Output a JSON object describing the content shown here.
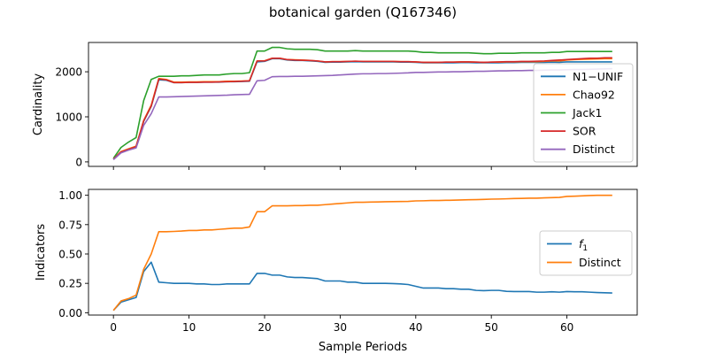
{
  "figure": {
    "title": "botanical garden (Q167346)",
    "xlabel": "Sample Periods"
  },
  "chart_data": [
    {
      "type": "line",
      "ylabel": "Cardinality",
      "xlim": [
        -3.3,
        69.3
      ],
      "ylim": [
        -100,
        2650
      ],
      "xticks": [
        0,
        10,
        20,
        30,
        40,
        50,
        60
      ],
      "yticks": [
        0,
        1000,
        2000
      ],
      "xticklabels_visible": false,
      "legend_position": "lower-right",
      "series": [
        {
          "name": "N1−UNIF",
          "color": "#1f77b4",
          "x": [
            0,
            1,
            2,
            3,
            4,
            5,
            6,
            7,
            8,
            9,
            10,
            11,
            12,
            13,
            14,
            15,
            16,
            17,
            18,
            19,
            20,
            21,
            22,
            23,
            24,
            25,
            26,
            27,
            28,
            29,
            30,
            31,
            32,
            33,
            34,
            35,
            36,
            37,
            38,
            39,
            40,
            41,
            42,
            43,
            44,
            45,
            46,
            47,
            48,
            49,
            50,
            51,
            52,
            53,
            54,
            55,
            56,
            57,
            58,
            59,
            60,
            61,
            62,
            63,
            64,
            65,
            66
          ],
          "y": [
            60,
            220,
            280,
            340,
            900,
            1230,
            1820,
            1810,
            1760,
            1760,
            1765,
            1765,
            1770,
            1770,
            1770,
            1780,
            1780,
            1785,
            1790,
            2220,
            2230,
            2290,
            2290,
            2260,
            2250,
            2250,
            2240,
            2230,
            2210,
            2215,
            2215,
            2220,
            2225,
            2220,
            2220,
            2220,
            2220,
            2220,
            2215,
            2215,
            2210,
            2200,
            2200,
            2200,
            2200,
            2200,
            2205,
            2205,
            2200,
            2200,
            2200,
            2200,
            2205,
            2205,
            2210,
            2210,
            2210,
            2210,
            2215,
            2210,
            2220,
            2220,
            2220,
            2220,
            2220,
            2220,
            2220
          ]
        },
        {
          "name": "Chao92",
          "color": "#ff7f0e",
          "x": [
            0,
            1,
            2,
            3,
            4,
            5,
            6,
            7,
            8,
            9,
            10,
            11,
            12,
            13,
            14,
            15,
            16,
            17,
            18,
            19,
            20,
            21,
            22,
            23,
            24,
            25,
            26,
            27,
            28,
            29,
            30,
            31,
            32,
            33,
            34,
            35,
            36,
            37,
            38,
            39,
            40,
            41,
            42,
            43,
            44,
            45,
            46,
            47,
            48,
            49,
            50,
            51,
            52,
            53,
            54,
            55,
            56,
            57,
            58,
            59,
            60,
            61,
            62,
            63,
            64,
            65,
            66
          ],
          "y": [
            60,
            230,
            290,
            350,
            920,
            1260,
            1850,
            1830,
            1770,
            1770,
            1775,
            1775,
            1780,
            1780,
            1780,
            1790,
            1790,
            1795,
            1800,
            2240,
            2245,
            2300,
            2300,
            2270,
            2265,
            2260,
            2250,
            2240,
            2220,
            2225,
            2225,
            2230,
            2235,
            2230,
            2230,
            2230,
            2230,
            2230,
            2225,
            2225,
            2220,
            2210,
            2210,
            2210,
            2215,
            2215,
            2220,
            2220,
            2215,
            2210,
            2215,
            2215,
            2220,
            2220,
            2225,
            2225,
            2225,
            2230,
            2240,
            2240,
            2260,
            2270,
            2275,
            2280,
            2285,
            2290,
            2290
          ]
        },
        {
          "name": "Jack1",
          "color": "#2ca02c",
          "x": [
            0,
            1,
            2,
            3,
            4,
            5,
            6,
            7,
            8,
            9,
            10,
            11,
            12,
            13,
            14,
            15,
            16,
            17,
            18,
            19,
            20,
            21,
            22,
            23,
            24,
            25,
            26,
            27,
            28,
            29,
            30,
            31,
            32,
            33,
            34,
            35,
            36,
            37,
            38,
            39,
            40,
            41,
            42,
            43,
            44,
            45,
            46,
            47,
            48,
            49,
            50,
            51,
            52,
            53,
            54,
            55,
            56,
            57,
            58,
            59,
            60,
            61,
            62,
            63,
            64,
            65,
            66
          ],
          "y": [
            80,
            320,
            440,
            540,
            1360,
            1830,
            1900,
            1900,
            1900,
            1910,
            1910,
            1920,
            1930,
            1930,
            1930,
            1950,
            1960,
            1960,
            1980,
            2460,
            2460,
            2540,
            2540,
            2510,
            2500,
            2500,
            2500,
            2490,
            2460,
            2460,
            2460,
            2460,
            2470,
            2460,
            2460,
            2460,
            2460,
            2460,
            2460,
            2460,
            2450,
            2430,
            2430,
            2420,
            2420,
            2420,
            2420,
            2420,
            2410,
            2400,
            2400,
            2410,
            2410,
            2410,
            2420,
            2420,
            2420,
            2420,
            2430,
            2430,
            2450,
            2450,
            2450,
            2450,
            2450,
            2450,
            2450
          ]
        },
        {
          "name": "SOR",
          "color": "#d62728",
          "x": [
            0,
            1,
            2,
            3,
            4,
            5,
            6,
            7,
            8,
            9,
            10,
            11,
            12,
            13,
            14,
            15,
            16,
            17,
            18,
            19,
            20,
            21,
            22,
            23,
            24,
            25,
            26,
            27,
            28,
            29,
            30,
            31,
            32,
            33,
            34,
            35,
            36,
            37,
            38,
            39,
            40,
            41,
            42,
            43,
            44,
            45,
            46,
            47,
            48,
            49,
            50,
            51,
            52,
            53,
            54,
            55,
            56,
            57,
            58,
            59,
            60,
            61,
            62,
            63,
            64,
            65,
            66
          ],
          "y": [
            60,
            220,
            280,
            340,
            910,
            1240,
            1840,
            1820,
            1760,
            1760,
            1765,
            1765,
            1770,
            1770,
            1775,
            1780,
            1785,
            1790,
            1800,
            2240,
            2240,
            2300,
            2300,
            2270,
            2260,
            2255,
            2250,
            2240,
            2220,
            2225,
            2225,
            2230,
            2235,
            2230,
            2230,
            2230,
            2230,
            2230,
            2225,
            2225,
            2220,
            2210,
            2210,
            2210,
            2215,
            2215,
            2220,
            2220,
            2215,
            2210,
            2215,
            2220,
            2225,
            2225,
            2230,
            2230,
            2235,
            2240,
            2250,
            2260,
            2270,
            2280,
            2290,
            2300,
            2300,
            2310,
            2310
          ]
        },
        {
          "name": "Distinct",
          "color": "#9467bd",
          "x": [
            0,
            1,
            2,
            3,
            4,
            5,
            6,
            7,
            8,
            9,
            10,
            11,
            12,
            13,
            14,
            15,
            16,
            17,
            18,
            19,
            20,
            21,
            22,
            23,
            24,
            25,
            26,
            27,
            28,
            29,
            30,
            31,
            32,
            33,
            34,
            35,
            36,
            37,
            38,
            39,
            40,
            41,
            42,
            43,
            44,
            45,
            46,
            47,
            48,
            49,
            50,
            51,
            52,
            53,
            54,
            55,
            56,
            57,
            58,
            59,
            60,
            61,
            62,
            63,
            64,
            65,
            66
          ],
          "y": [
            50,
            200,
            260,
            310,
            810,
            1070,
            1440,
            1440,
            1445,
            1450,
            1455,
            1460,
            1465,
            1470,
            1475,
            1480,
            1490,
            1495,
            1500,
            1800,
            1810,
            1890,
            1895,
            1895,
            1900,
            1900,
            1905,
            1910,
            1915,
            1920,
            1930,
            1940,
            1950,
            1955,
            1955,
            1960,
            1960,
            1965,
            1970,
            1975,
            1985,
            1985,
            1990,
            1995,
            1995,
            2000,
            2000,
            2005,
            2010,
            2010,
            2015,
            2020,
            2020,
            2025,
            2025,
            2030,
            2030,
            2035,
            2040,
            2040,
            2045,
            2050,
            2050,
            2055,
            2060,
            2065,
            2070
          ]
        }
      ]
    },
    {
      "type": "line",
      "ylabel": "Indicators",
      "xlim": [
        -3.3,
        69.3
      ],
      "ylim": [
        -0.02,
        1.05
      ],
      "xticks": [
        0,
        10,
        20,
        30,
        40,
        50,
        60
      ],
      "xticklabels": [
        "0",
        "10",
        "20",
        "30",
        "40",
        "50",
        "60"
      ],
      "yticks": [
        0.0,
        0.25,
        0.5,
        0.75,
        1.0
      ],
      "yticklabels": [
        "0.00",
        "0.25",
        "0.50",
        "0.75",
        "1.00"
      ],
      "legend_position": "center-right",
      "series": [
        {
          "name": "f",
          "name_sub": "1",
          "color": "#1f77b4",
          "x": [
            0,
            1,
            2,
            3,
            4,
            5,
            6,
            7,
            8,
            9,
            10,
            11,
            12,
            13,
            14,
            15,
            16,
            17,
            18,
            19,
            20,
            21,
            22,
            23,
            24,
            25,
            26,
            27,
            28,
            29,
            30,
            31,
            32,
            33,
            34,
            35,
            36,
            37,
            38,
            39,
            40,
            41,
            42,
            43,
            44,
            45,
            46,
            47,
            48,
            49,
            50,
            51,
            52,
            53,
            54,
            55,
            56,
            57,
            58,
            59,
            60,
            61,
            62,
            63,
            64,
            65,
            66
          ],
          "y": [
            0.02,
            0.09,
            0.11,
            0.13,
            0.35,
            0.43,
            0.26,
            0.255,
            0.25,
            0.25,
            0.25,
            0.245,
            0.245,
            0.24,
            0.24,
            0.245,
            0.245,
            0.245,
            0.245,
            0.335,
            0.335,
            0.32,
            0.32,
            0.305,
            0.3,
            0.3,
            0.295,
            0.29,
            0.27,
            0.27,
            0.27,
            0.26,
            0.26,
            0.25,
            0.25,
            0.25,
            0.25,
            0.248,
            0.245,
            0.24,
            0.225,
            0.21,
            0.21,
            0.21,
            0.205,
            0.205,
            0.2,
            0.2,
            0.19,
            0.188,
            0.19,
            0.19,
            0.182,
            0.18,
            0.18,
            0.18,
            0.175,
            0.175,
            0.178,
            0.175,
            0.18,
            0.178,
            0.178,
            0.175,
            0.172,
            0.17,
            0.168
          ]
        },
        {
          "name": "Distinct",
          "color": "#ff7f0e",
          "x": [
            0,
            1,
            2,
            3,
            4,
            5,
            6,
            7,
            8,
            9,
            10,
            11,
            12,
            13,
            14,
            15,
            16,
            17,
            18,
            19,
            20,
            21,
            22,
            23,
            24,
            25,
            26,
            27,
            28,
            29,
            30,
            31,
            32,
            33,
            34,
            35,
            36,
            37,
            38,
            39,
            40,
            41,
            42,
            43,
            44,
            45,
            46,
            47,
            48,
            49,
            50,
            51,
            52,
            53,
            54,
            55,
            56,
            57,
            58,
            59,
            60,
            61,
            62,
            63,
            64,
            65,
            66
          ],
          "y": [
            0.02,
            0.1,
            0.12,
            0.15,
            0.37,
            0.5,
            0.69,
            0.69,
            0.692,
            0.695,
            0.7,
            0.7,
            0.705,
            0.705,
            0.71,
            0.715,
            0.72,
            0.72,
            0.73,
            0.86,
            0.86,
            0.91,
            0.91,
            0.91,
            0.912,
            0.912,
            0.915,
            0.915,
            0.92,
            0.925,
            0.93,
            0.935,
            0.94,
            0.94,
            0.942,
            0.943,
            0.945,
            0.946,
            0.947,
            0.948,
            0.952,
            0.953,
            0.955,
            0.955,
            0.957,
            0.958,
            0.96,
            0.962,
            0.963,
            0.965,
            0.967,
            0.968,
            0.97,
            0.972,
            0.973,
            0.975,
            0.975,
            0.978,
            0.98,
            0.982,
            0.99,
            0.992,
            0.995,
            0.998,
            1.0,
            1.0,
            1.0
          ]
        }
      ]
    }
  ]
}
